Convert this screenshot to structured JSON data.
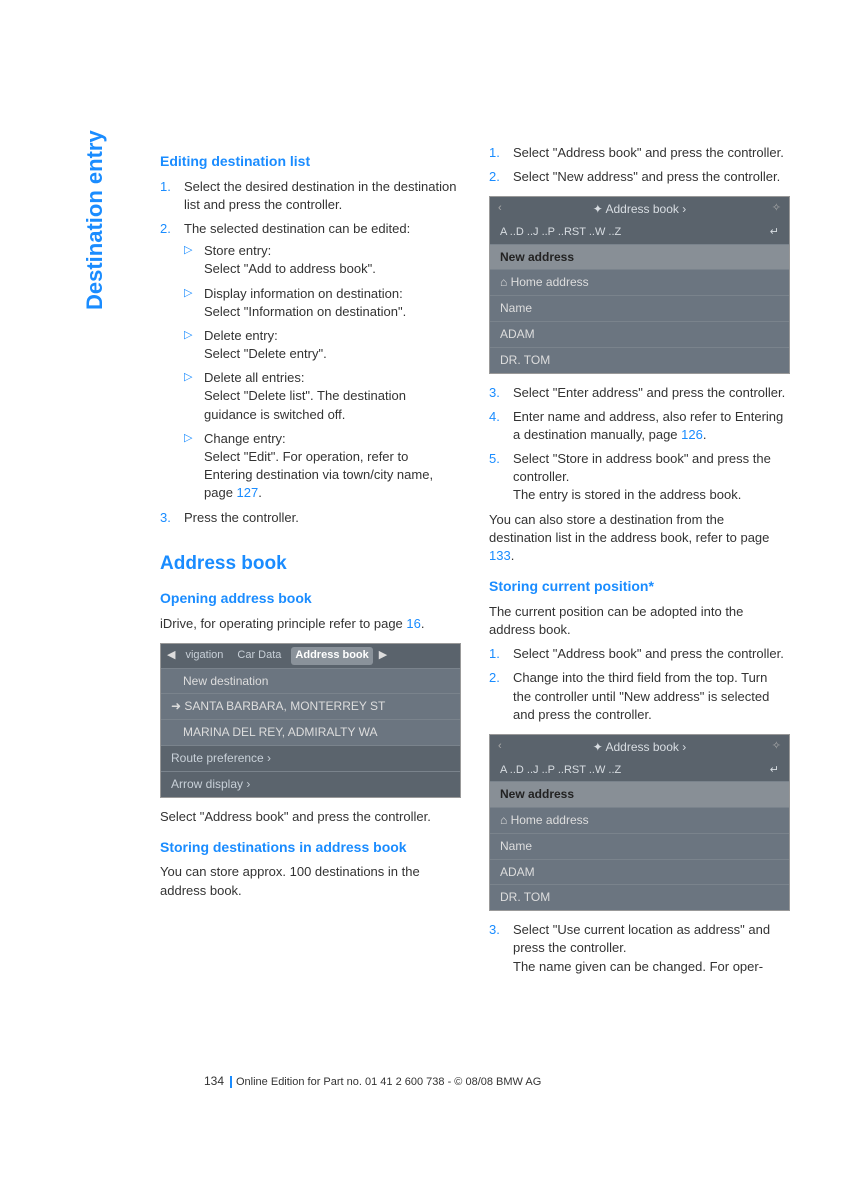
{
  "sideLabel": "Destination entry",
  "left": {
    "h1": "Editing destination list",
    "edit_steps": [
      "Select the desired destination in the destination list and press the controller.",
      "The selected destination can be edited:"
    ],
    "edit_options": [
      {
        "title": "Store entry:",
        "body": "Select \"Add to address book\"."
      },
      {
        "title": "Display information on destination:",
        "body": "Select \"Information on destination\"."
      },
      {
        "title": "Delete entry:",
        "body": "Select \"Delete entry\"."
      },
      {
        "title": "Delete all entries:",
        "body": "Select \"Delete list\". The destination guidance is switched off."
      },
      {
        "title": "Change entry:",
        "body": "Select \"Edit\". For operation, refer to Entering destination via town/city name, page ",
        "link": "127",
        "tail": "."
      }
    ],
    "edit_step3": "Press the controller.",
    "h2": "Address book",
    "h3": "Opening address book",
    "idrive_text": "iDrive, for operating principle refer to page ",
    "idrive_link": "16",
    "idrive_tail": ".",
    "nav_screenshot": {
      "tabs": [
        "vigation",
        "Car Data",
        "Address book"
      ],
      "rows": [
        "New destination",
        "SANTA BARBARA, MONTERREY ST",
        "MARINA DEL REY, ADMIRALTY WA"
      ],
      "bottom": [
        "Route preference  ›",
        "Arrow display  ›"
      ]
    },
    "after_nav": "Select \"Address book\" and press the controller.",
    "h4": "Storing destinations in address book",
    "store_intro": "You can store approx. 100 destinations in the address book."
  },
  "right": {
    "top_steps": [
      "Select \"Address book\" and press the controller.",
      "Select \"New address\" and press the controller."
    ],
    "ab_screenshot": {
      "header": "Address book",
      "alpha": "A  ..D  ..J  ..P  ..RST  ..W  ..Z",
      "highlight": "New address",
      "rows": [
        "⌂ Home address",
        "Name",
        "ADAM",
        "DR. TOM"
      ]
    },
    "mid_steps": [
      "Select \"Enter address\" and press the controller.",
      "Enter name and address, also refer to Entering a destination manually, page ",
      "Select \"Store in address book\" and press the controller."
    ],
    "mid_link": "126",
    "mid_tail": ".",
    "mid_step5_extra": "The entry is stored in the address book.",
    "also_store": "You can also store a destination from the destination list in the address book, refer to page ",
    "also_store_link": "133",
    "also_store_tail": ".",
    "h_scp": "Storing current position*",
    "scp_intro": "The current position can be adopted into the address book.",
    "scp_steps": [
      "Select \"Address book\" and press the controller.",
      "Change into the third field from the top. Turn the controller until \"New address\" is selected and press the controller."
    ],
    "scp_step3": "Select \"Use current location as address\" and press the controller.",
    "scp_step3_extra": "The name given can be changed. For oper-"
  },
  "footer": {
    "page": "134",
    "text": "Online Edition for Part no. 01 41 2 600 738 - © 08/08 BMW AG"
  }
}
